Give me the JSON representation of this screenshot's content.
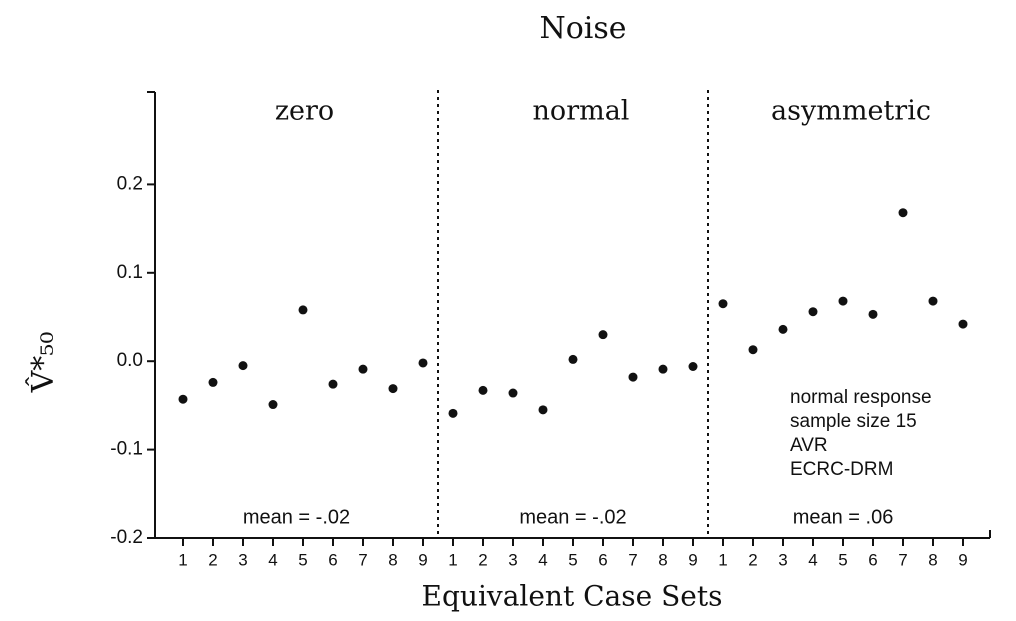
{
  "chart_data": {
    "type": "scatter",
    "title": "Noise",
    "x_label": "Equivalent Case Sets",
    "y_label": "V̂*₅₀",
    "ylim": [
      -0.2,
      0.3
    ],
    "yticks": [
      0.2,
      0.1,
      {
        "value": 0,
        "label": "0.0"
      },
      -0.1,
      -0.2
    ],
    "color": "#111111",
    "panels": [
      {
        "name": "zero",
        "categories": [
          "1",
          "2",
          "3",
          "4",
          "5",
          "6",
          "7",
          "8",
          "9"
        ],
        "values": [
          -0.043,
          -0.024,
          -0.005,
          -0.049,
          0.058,
          -0.026,
          -0.009,
          -0.031,
          -0.002
        ],
        "annotation": "mean = -.02"
      },
      {
        "name": "normal",
        "categories": [
          "1",
          "2",
          "3",
          "4",
          "5",
          "6",
          "7",
          "8",
          "9"
        ],
        "values": [
          -0.059,
          -0.033,
          -0.036,
          -0.055,
          0.002,
          0.03,
          -0.018,
          -0.009,
          -0.006
        ],
        "annotation": "mean = -.02"
      },
      {
        "name": "asymmetric",
        "categories": [
          "1",
          "2",
          "3",
          "4",
          "5",
          "6",
          "7",
          "8",
          "9"
        ],
        "values": [
          0.065,
          0.013,
          0.036,
          0.056,
          0.068,
          0.053,
          0.168,
          0.068,
          0.042
        ],
        "annotation": "mean = .06"
      }
    ],
    "note": [
      "normal response",
      "sample size 15",
      "AVR",
      "ECRC-DRM"
    ]
  }
}
